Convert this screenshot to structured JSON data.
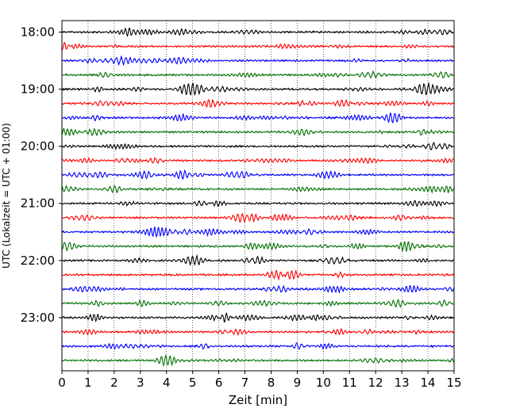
{
  "chart_data": {
    "type": "line",
    "title": "",
    "xlabel": "Zeit  [min]",
    "ylabel": "UTC (Lokalzeit = UTC + 01:00)",
    "xlim": [
      0,
      15
    ],
    "x_ticks": [
      "0",
      "1",
      "2",
      "3",
      "4",
      "5",
      "6",
      "7",
      "8",
      "9",
      "10",
      "11",
      "12",
      "13",
      "14",
      "15"
    ],
    "y_ticks": [
      "18:00",
      "19:00",
      "20:00",
      "21:00",
      "22:00",
      "23:00"
    ],
    "grid": "vertical-dotted",
    "trace_interval_min": 15,
    "start_time": "18:00",
    "trace_count": 24,
    "trace_colors": [
      "#000000",
      "#ff0000",
      "#0000ff",
      "#007000"
    ]
  }
}
